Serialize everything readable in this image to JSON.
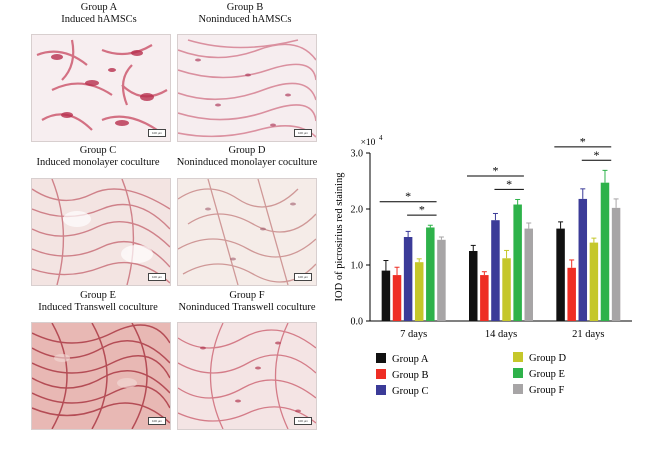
{
  "panels": [
    {
      "line1": "Group A",
      "line2": "Induced hAMSCs",
      "scale_bar": "100 μm"
    },
    {
      "line1": "Group B",
      "line2": "Noninduced hAMSCs",
      "scale_bar": "100 μm"
    },
    {
      "line1": "Group C",
      "line2": "Induced monolayer coculture",
      "scale_bar": "100 μm"
    },
    {
      "line1": "Group D",
      "line2": "Noninduced monolayer coculture",
      "scale_bar": "100 μm"
    },
    {
      "line1": "Group E",
      "line2": "Induced Transwell coculture",
      "scale_bar": "100 μm"
    },
    {
      "line1": "Group F",
      "line2": "Noninduced Transwell coculture",
      "scale_bar": "100 μm"
    }
  ],
  "chart_data": {
    "type": "bar",
    "ylabel": "IOD of picrosirius red staining",
    "y_multiplier": "×10",
    "y_multiplier_exp": "4",
    "ylim": [
      0,
      3.0
    ],
    "yticks": [
      "0.0",
      "1.0",
      "2.0",
      "3.0"
    ],
    "grid": false,
    "legend_position": "bottom",
    "categories": [
      "7 days",
      "14 days",
      "21 days"
    ],
    "series": [
      {
        "name": "Group A",
        "color": "#111111",
        "values": [
          0.9,
          1.25,
          1.65
        ],
        "errors": [
          0.18,
          0.1,
          0.12
        ]
      },
      {
        "name": "Group B",
        "color": "#ee2d24",
        "values": [
          0.82,
          0.82,
          0.95
        ],
        "errors": [
          0.14,
          0.06,
          0.14
        ]
      },
      {
        "name": "Group C",
        "color": "#3b3b98",
        "values": [
          1.5,
          1.8,
          2.18
        ],
        "errors": [
          0.1,
          0.12,
          0.18
        ]
      },
      {
        "name": "Group D",
        "color": "#c5c72a",
        "values": [
          1.05,
          1.12,
          1.4
        ],
        "errors": [
          0.06,
          0.14,
          0.08
        ]
      },
      {
        "name": "Group E",
        "color": "#2eb24a",
        "values": [
          1.67,
          2.08,
          2.47
        ],
        "errors": [
          0.04,
          0.09,
          0.22
        ]
      },
      {
        "name": "Group F",
        "color": "#a7a5a6",
        "values": [
          1.45,
          1.65,
          2.02
        ],
        "errors": [
          0.05,
          0.1,
          0.16
        ]
      }
    ],
    "significance": [
      {
        "category": 0,
        "from": 0,
        "to": 4,
        "label": "*"
      },
      {
        "category": 0,
        "from": 2,
        "to": 4,
        "label": "*"
      },
      {
        "category": 1,
        "from": 0,
        "to": 4,
        "label": "*"
      },
      {
        "category": 1,
        "from": 2,
        "to": 4,
        "label": "*"
      },
      {
        "category": 2,
        "from": 0,
        "to": 4,
        "label": "*"
      },
      {
        "category": 2,
        "from": 2,
        "to": 4,
        "label": "*"
      }
    ]
  }
}
